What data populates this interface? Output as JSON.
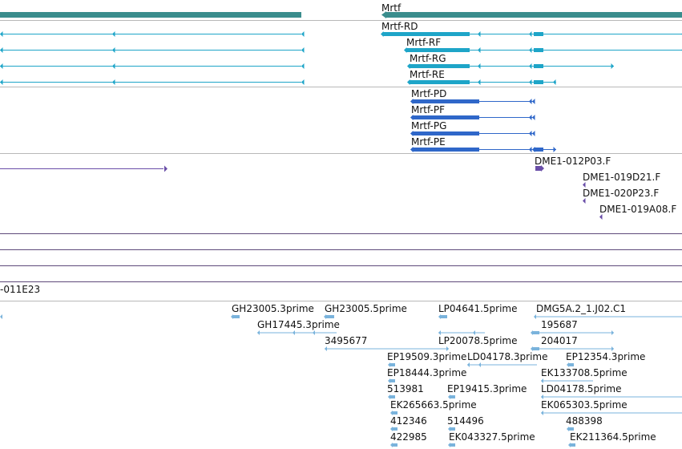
{
  "colors": {
    "gene": "#3a8d8d",
    "transcript": "#1ea5c8",
    "cds_transcript": "#2f67c9",
    "insertion": "#6a4ea8",
    "aligned": "#7ab3dc",
    "divider": "#b8b8b8",
    "scaffold_line": "#5e4a7a"
  },
  "gene": {
    "label": "Mrtf"
  },
  "transcripts_a": [
    "Mrtf-RD",
    "Mrtf-RF",
    "Mrtf-RG",
    "Mrtf-RE"
  ],
  "transcripts_b": [
    "Mrtf-PD",
    "Mrtf-PF",
    "Mrtf-PG",
    "Mrtf-PE"
  ],
  "insertions": [
    "DME1-012P03.F",
    "DME1-019D21.F",
    "DME1-020P23.F",
    "DME1-019A08.F"
  ],
  "clone_label": "-011E23",
  "ests": [
    "GH23005.3prime",
    "GH23005.5prime",
    "LP04641.5prime",
    "DMG5A.2_1.J02.C1",
    "GH17445.3prime",
    "195687",
    "3495677",
    "LP20078.5prime",
    "204017",
    "EP19509.3prime",
    "LD04178.3prime",
    "EP12354.3prime",
    "EP18444.3prime",
    "EK133708.5prime",
    "513981",
    "EP19415.3prime",
    "LD04178.5prime",
    "EK265663.5prime",
    "EK065303.5prime",
    "412346",
    "514496",
    "488398",
    "422985",
    "EK043327.5prime",
    "EK211364.5prime"
  ]
}
